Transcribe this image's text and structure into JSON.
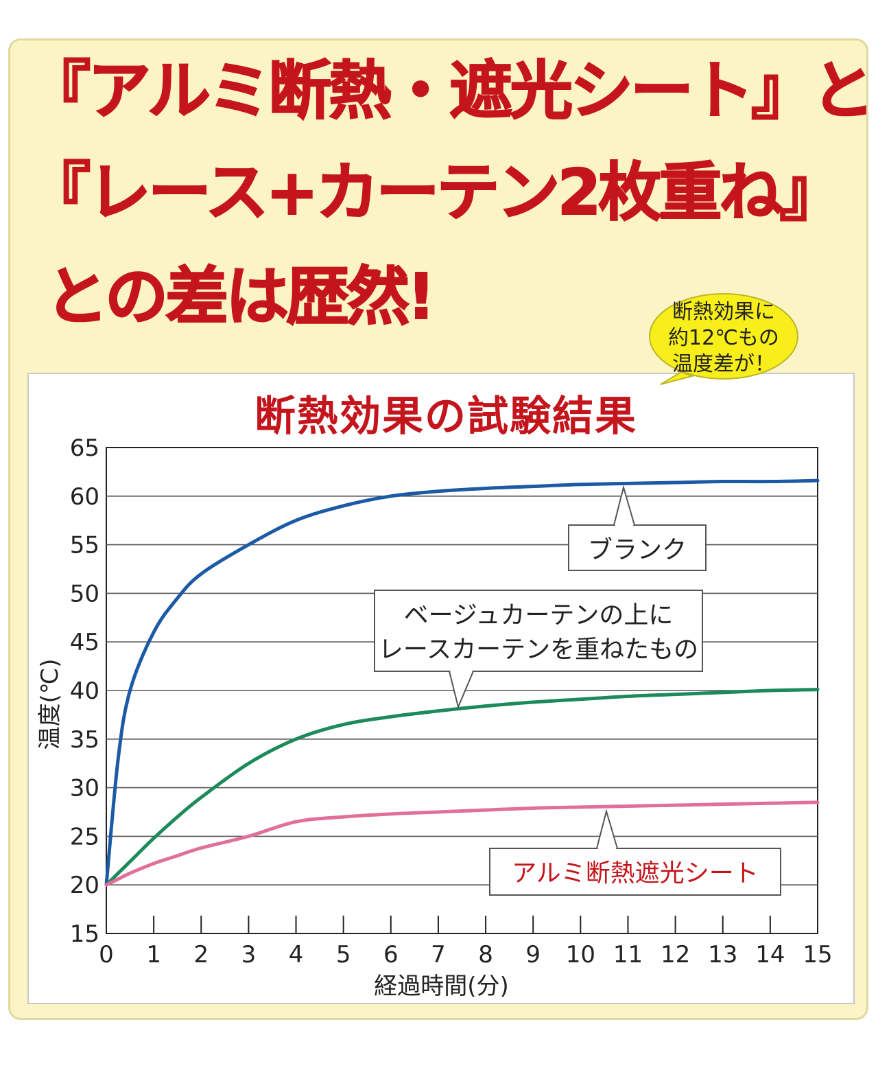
{
  "headline": {
    "line1": "『アルミ断熱・遮光シート』と",
    "line2": "『レース+カーテン2枚重ね』",
    "line3": "との差は歴然!"
  },
  "callout": {
    "lines": [
      "断熱効果に",
      "約12℃もの",
      "温度差が！"
    ]
  },
  "colors": {
    "headline": "#c5151c",
    "panel_bg": "#fcf4c4",
    "bubble": "#f8ef1a",
    "blank_series": "#1c5aa6",
    "curtain_series": "#1c8a5a",
    "alumi_series": "#e0709a"
  },
  "chart_data": {
    "type": "line",
    "title": "断熱効果の試験結果",
    "xlabel": "経過時間(分)",
    "ylabel": "温度(℃)",
    "xlim": [
      0,
      15
    ],
    "ylim": [
      15,
      65
    ],
    "xticks": [
      0,
      1,
      2,
      3,
      4,
      5,
      6,
      7,
      8,
      9,
      10,
      11,
      12,
      13,
      14,
      15
    ],
    "yticks": [
      15,
      20,
      25,
      30,
      35,
      40,
      45,
      50,
      55,
      60,
      65
    ],
    "grid": true,
    "x": [
      0,
      0.25,
      0.5,
      1,
      1.5,
      2,
      3,
      4,
      5,
      6,
      7,
      8,
      9,
      10,
      11,
      12,
      13,
      14,
      15
    ],
    "series": [
      {
        "name": "ブランク",
        "color": "#1c5aa6",
        "values": [
          20,
          33,
          40,
          46,
          49.5,
          52,
          55,
          57.5,
          59,
          60,
          60.5,
          60.8,
          61,
          61.2,
          61.3,
          61.4,
          61.5,
          61.5,
          61.6
        ]
      },
      {
        "name": "ベージュカーテンの上にレースカーテンを重ねたもの",
        "color": "#1c8a5a",
        "values": [
          20,
          21.2,
          22.4,
          24.8,
          27,
          29,
          32.5,
          35,
          36.5,
          37.3,
          37.9,
          38.4,
          38.8,
          39.1,
          39.4,
          39.6,
          39.8,
          40,
          40.1
        ]
      },
      {
        "name": "アルミ断熱遮光シート",
        "color": "#e0709a",
        "values": [
          20,
          20.6,
          21.2,
          22.2,
          23,
          23.8,
          25,
          26.5,
          27,
          27.3,
          27.5,
          27.7,
          27.9,
          28,
          28.1,
          28.2,
          28.3,
          28.4,
          28.5
        ]
      }
    ],
    "annotations": [
      {
        "text": "ブランク",
        "series": 0
      },
      {
        "text": "ベージュカーテンの上に",
        "text2": "レースカーテンを重ねたもの",
        "series": 1
      },
      {
        "text": "アルミ断熱遮光シート",
        "series": 2
      }
    ]
  }
}
